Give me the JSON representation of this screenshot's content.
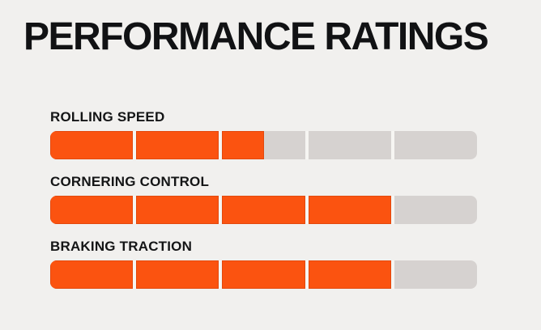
{
  "title": "PERFORMANCE RATINGS",
  "colors": {
    "background": "#f1f0ee",
    "fill_orange": "#fb5310",
    "track_gray": "#d6d2d0",
    "segment_gap": "#f6f5f2",
    "text": "#141516"
  },
  "chart_data": {
    "type": "bar",
    "orientation": "horizontal",
    "title": "PERFORMANCE RATINGS",
    "categories": [
      "ROLLING SPEED",
      "CORNERING CONTROL",
      "BRAKING TRACTION"
    ],
    "values": [
      2.5,
      4,
      4
    ],
    "value_max": 5,
    "segments_per_bar": 5,
    "grid": false,
    "legend": false
  },
  "rows": [
    {
      "label": "ROLLING SPEED"
    },
    {
      "label": "CORNERING CONTROL"
    },
    {
      "label": "BRAKING TRACTION"
    }
  ]
}
